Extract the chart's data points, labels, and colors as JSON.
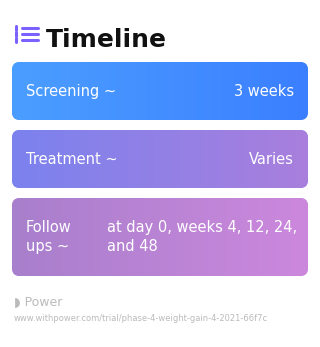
{
  "title": "Timeline",
  "title_fontsize": 18,
  "title_color": "#111111",
  "icon_color": "#7B61FF",
  "background_color": "#ffffff",
  "cards": [
    {
      "label_left": "Screening ~",
      "label_right": "3 weeks",
      "color_left": "#4B9EFF",
      "color_right": "#3B7FFF",
      "multiline": false
    },
    {
      "label_left": "Treatment ~",
      "label_right": "Varies",
      "color_left": "#7B82EE",
      "color_right": "#A97FDD",
      "multiline": false
    },
    {
      "label_left": "Follow\nups ~",
      "label_right": "at day 0, weeks 4, 12, 24,\nand 48",
      "color_left": "#A87FCC",
      "color_right": "#CC88DD",
      "multiline": true
    }
  ],
  "footer_logo_color": "#bbbbbb",
  "footer_text": "Power",
  "footer_url": "www.withpower.com/trial/phase-4-weight-gain-4-2021-66f7c",
  "card_text_color": "#ffffff",
  "card_fontsize": 10.5
}
